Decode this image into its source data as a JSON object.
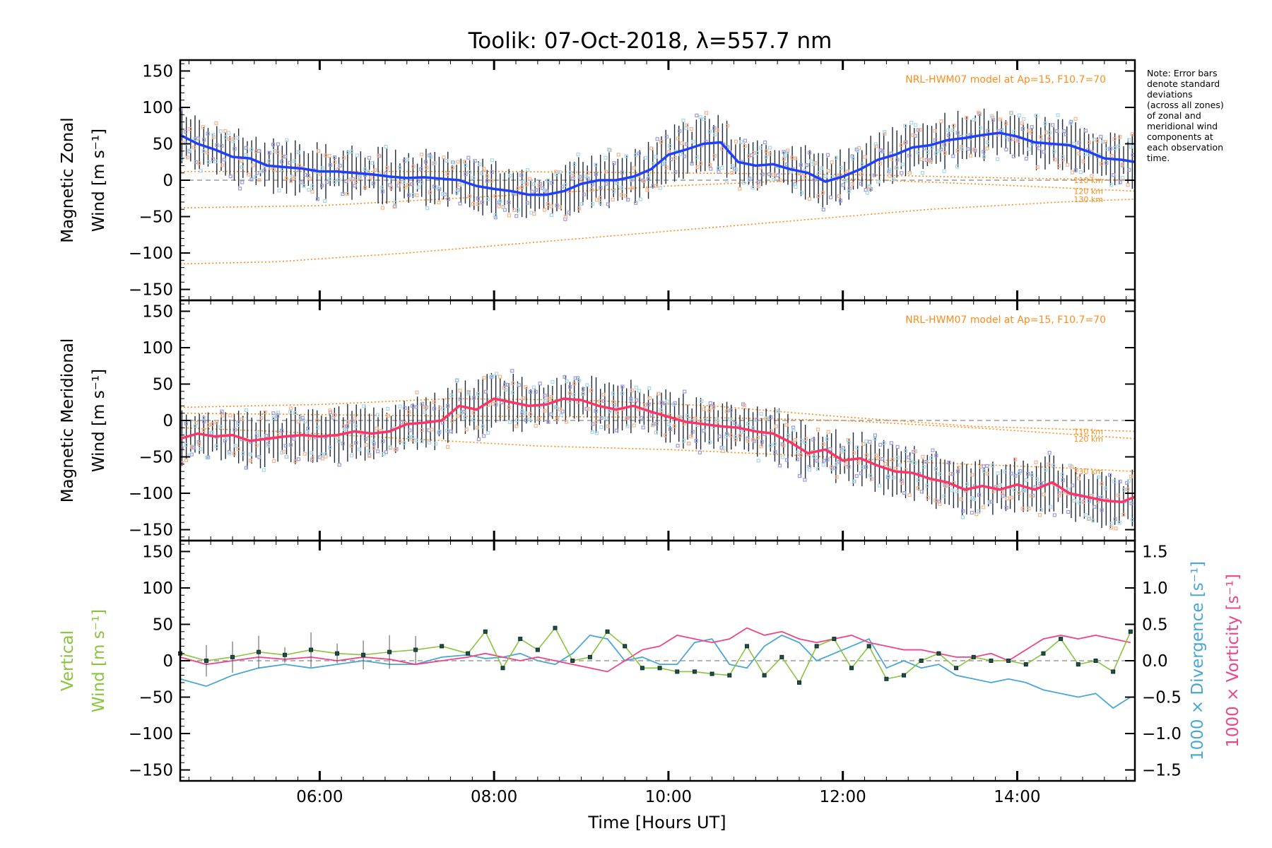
{
  "figure": {
    "title": "Toolik: 07-Oct-2018, λ=557.7 nm",
    "xlabel": "Time [Hours UT]",
    "note_lines": [
      "Note: Error bars",
      "denote standard",
      "deviations",
      "(across all zones)",
      "of zonal and",
      "meridional wind",
      "components at",
      "each observation",
      "time."
    ],
    "model_label": "NRL-HWM07 model at Ap=15, F10.7=70",
    "colors": {
      "zonal": "#1f3fff",
      "meridional": "#ff3366",
      "vertical": "#88c43c",
      "divergence": "#4aa6d6",
      "vorticity": "#ee4488",
      "model": "#ff8c1a",
      "scatter": "#9b9bdc",
      "errbar": "#202a3a"
    }
  },
  "chart_data": [
    {
      "type": "line",
      "panel": "zonal",
      "ylabel_line1": "Magnetic Zonal",
      "ylabel_line2": "Wind [m s⁻¹]",
      "ylim": [
        -165,
        165
      ],
      "xlim": [
        4.4,
        15.35
      ],
      "yticks": [
        -150,
        -100,
        -50,
        0,
        50,
        100,
        150
      ],
      "xticks": [
        {
          "v": 6,
          "label": "06:00"
        },
        {
          "v": 8,
          "label": "08:00"
        },
        {
          "v": 10,
          "label": "10:00"
        },
        {
          "v": 12,
          "label": "12:00"
        },
        {
          "v": 14,
          "label": "14:00"
        }
      ],
      "model_note": "NRL-HWM07 model at Ap=15, F10.7=70",
      "series": [
        {
          "name": "Zonal wind",
          "x": [
            4.4,
            4.6,
            4.8,
            5.0,
            5.2,
            5.4,
            5.6,
            5.8,
            6.0,
            6.2,
            6.4,
            6.6,
            6.8,
            7.0,
            7.2,
            7.4,
            7.6,
            7.8,
            8.0,
            8.2,
            8.4,
            8.6,
            8.8,
            9.0,
            9.2,
            9.4,
            9.6,
            9.8,
            10.0,
            10.2,
            10.4,
            10.6,
            10.8,
            11.0,
            11.2,
            11.4,
            11.6,
            11.8,
            12.0,
            12.2,
            12.4,
            12.6,
            12.8,
            13.0,
            13.2,
            13.4,
            13.6,
            13.8,
            14.0,
            14.2,
            14.4,
            14.6,
            14.8,
            15.0,
            15.2,
            15.35
          ],
          "values": [
            62,
            50,
            42,
            32,
            30,
            20,
            18,
            16,
            12,
            12,
            10,
            8,
            5,
            3,
            4,
            2,
            0,
            -8,
            -12,
            -15,
            -20,
            -20,
            -15,
            -5,
            0,
            0,
            5,
            15,
            35,
            42,
            50,
            52,
            25,
            20,
            22,
            15,
            10,
            -2,
            5,
            15,
            28,
            35,
            45,
            48,
            55,
            58,
            62,
            65,
            60,
            52,
            50,
            48,
            40,
            30,
            28,
            25
          ]
        },
        {
          "name": "110 km",
          "x": [
            4.4,
            6,
            8,
            10,
            12,
            13.5,
            15.35
          ],
          "values": [
            12,
            12,
            12,
            10,
            8,
            4,
            0
          ]
        },
        {
          "name": "120 km",
          "x": [
            4.4,
            6,
            8,
            10,
            12,
            13.5,
            15.35
          ],
          "values": [
            -38,
            -35,
            -22,
            -8,
            2,
            -5,
            -15
          ]
        },
        {
          "name": "130 km",
          "x": [
            4.4,
            5.5,
            7,
            8.5,
            10,
            11.5,
            13,
            14.5,
            15.35
          ],
          "values": [
            -115,
            -112,
            -100,
            -85,
            -70,
            -55,
            -40,
            -30,
            -26
          ]
        }
      ]
    },
    {
      "type": "line",
      "panel": "meridional",
      "ylabel_line1": "Magnetic Meridional",
      "ylabel_line2": "Wind [m s⁻¹]",
      "ylim": [
        -165,
        165
      ],
      "xlim": [
        4.4,
        15.35
      ],
      "yticks": [
        -150,
        -100,
        -50,
        0,
        50,
        100,
        150
      ],
      "model_note": "NRL-HWM07 model at Ap=15, F10.7=70",
      "series": [
        {
          "name": "Meridional wind",
          "x": [
            4.4,
            4.6,
            4.8,
            5.0,
            5.2,
            5.4,
            5.6,
            5.8,
            6.0,
            6.2,
            6.4,
            6.6,
            6.8,
            7.0,
            7.2,
            7.4,
            7.6,
            7.8,
            8.0,
            8.2,
            8.4,
            8.6,
            8.8,
            9.0,
            9.2,
            9.4,
            9.6,
            9.8,
            10.0,
            10.2,
            10.4,
            10.6,
            10.8,
            11.0,
            11.2,
            11.4,
            11.6,
            11.8,
            12.0,
            12.2,
            12.4,
            12.6,
            12.8,
            13.0,
            13.2,
            13.4,
            13.6,
            13.8,
            14.0,
            14.2,
            14.4,
            14.6,
            14.8,
            15.0,
            15.2,
            15.35
          ],
          "values": [
            -25,
            -18,
            -22,
            -20,
            -28,
            -25,
            -22,
            -20,
            -22,
            -20,
            -15,
            -18,
            -15,
            -5,
            -3,
            0,
            20,
            15,
            30,
            25,
            20,
            22,
            30,
            28,
            20,
            15,
            20,
            12,
            5,
            -2,
            -5,
            -8,
            -10,
            -15,
            -18,
            -30,
            -45,
            -40,
            -55,
            -52,
            -62,
            -70,
            -72,
            -80,
            -85,
            -95,
            -90,
            -95,
            -88,
            -95,
            -85,
            -100,
            -105,
            -110,
            -112,
            -105
          ]
        },
        {
          "name": "110 km",
          "x": [
            4.4,
            6,
            7.5,
            9,
            10.5,
            12,
            13.5,
            15.35
          ],
          "values": [
            18,
            22,
            30,
            28,
            20,
            5,
            -8,
            -15
          ]
        },
        {
          "name": "120 km",
          "x": [
            4.4,
            6,
            7.5,
            9,
            10.5,
            12,
            13.5,
            15.35
          ],
          "values": [
            10,
            8,
            6,
            5,
            4,
            0,
            -10,
            -25
          ]
        },
        {
          "name": "130 km",
          "x": [
            4.4,
            5.5,
            7,
            8.5,
            10,
            11.5,
            13,
            14.5,
            15.35
          ],
          "values": [
            -10,
            -15,
            -25,
            -35,
            -40,
            -48,
            -58,
            -65,
            -70
          ]
        }
      ]
    },
    {
      "type": "line",
      "panel": "vertical",
      "ylabel_line1": "Vertical",
      "ylabel_line2": "Wind [m s⁻¹]",
      "ylim": [
        -165,
        165
      ],
      "xlim": [
        4.4,
        15.35
      ],
      "yticks": [
        -150,
        -100,
        -50,
        0,
        50,
        100,
        150
      ],
      "y2label_div": "1000 × Divergence [s⁻¹]",
      "y2label_vor": "1000 × Vorticity [s⁻¹]",
      "y2lim": [
        -1.65,
        1.65
      ],
      "y2ticks": [
        {
          "v": 1.5,
          "label": "1.5"
        },
        {
          "v": 1.0,
          "label": "1.0"
        },
        {
          "v": 0.5,
          "label": "0.5"
        },
        {
          "v": 0.0,
          "label": "0.0"
        },
        {
          "v": -0.5,
          "label": "−0.5"
        },
        {
          "v": -1.0,
          "label": "−1.0"
        },
        {
          "v": -1.5,
          "label": "−1.5"
        }
      ],
      "series": [
        {
          "name": "Vertical wind",
          "x": [
            4.4,
            4.7,
            5.0,
            5.3,
            5.6,
            5.9,
            6.2,
            6.5,
            6.8,
            7.1,
            7.4,
            7.7,
            7.9,
            8.1,
            8.3,
            8.5,
            8.7,
            8.9,
            9.1,
            9.3,
            9.5,
            9.7,
            9.9,
            10.1,
            10.3,
            10.5,
            10.7,
            10.9,
            11.1,
            11.3,
            11.5,
            11.7,
            11.9,
            12.1,
            12.3,
            12.5,
            12.7,
            12.9,
            13.1,
            13.3,
            13.5,
            13.7,
            13.9,
            14.1,
            14.3,
            14.5,
            14.7,
            14.9,
            15.1,
            15.3
          ],
          "values": [
            10,
            0,
            5,
            12,
            8,
            15,
            10,
            8,
            12,
            15,
            20,
            10,
            40,
            -10,
            30,
            15,
            45,
            0,
            5,
            40,
            20,
            -10,
            -10,
            -15,
            -15,
            -18,
            -20,
            20,
            -20,
            5,
            -30,
            20,
            30,
            -10,
            20,
            -25,
            -20,
            0,
            10,
            -10,
            5,
            0,
            0,
            -5,
            10,
            30,
            -5,
            0,
            -15,
            40
          ]
        },
        {
          "name": "1000 × Divergence",
          "x": [
            4.4,
            4.7,
            5.0,
            5.3,
            5.6,
            5.9,
            6.2,
            6.5,
            6.8,
            7.1,
            7.4,
            7.7,
            7.9,
            8.1,
            8.3,
            8.5,
            8.7,
            8.9,
            9.1,
            9.3,
            9.5,
            9.7,
            9.9,
            10.1,
            10.3,
            10.5,
            10.7,
            10.9,
            11.1,
            11.3,
            11.5,
            11.7,
            11.9,
            12.1,
            12.3,
            12.5,
            12.7,
            12.9,
            13.1,
            13.3,
            13.5,
            13.7,
            13.9,
            14.1,
            14.3,
            14.5,
            14.7,
            14.9,
            15.1,
            15.3
          ],
          "values": [
            -0.25,
            -0.35,
            -0.2,
            -0.1,
            -0.05,
            -0.1,
            -0.05,
            0.0,
            -0.05,
            -0.05,
            0.05,
            0.08,
            0.03,
            0.05,
            0.1,
            0.0,
            -0.05,
            0.1,
            0.35,
            0.3,
            0.0,
            0.05,
            -0.05,
            -0.05,
            0.25,
            0.3,
            -0.05,
            -0.1,
            0.2,
            0.35,
            0.25,
            0.0,
            0.1,
            0.2,
            0.3,
            -0.1,
            0.0,
            -0.1,
            -0.05,
            -0.2,
            -0.25,
            -0.3,
            -0.25,
            -0.3,
            -0.4,
            -0.45,
            -0.5,
            -0.45,
            -0.65,
            -0.5
          ]
        },
        {
          "name": "1000 × Vorticity",
          "x": [
            4.4,
            4.7,
            5.0,
            5.3,
            5.6,
            5.9,
            6.2,
            6.5,
            6.8,
            7.1,
            7.4,
            7.7,
            7.9,
            8.1,
            8.3,
            8.5,
            8.7,
            8.9,
            9.1,
            9.3,
            9.5,
            9.7,
            9.9,
            10.1,
            10.3,
            10.5,
            10.7,
            10.9,
            11.1,
            11.3,
            11.5,
            11.7,
            11.9,
            12.1,
            12.3,
            12.5,
            12.7,
            12.9,
            13.1,
            13.3,
            13.5,
            13.7,
            13.9,
            14.1,
            14.3,
            14.5,
            14.7,
            14.9,
            15.1,
            15.3
          ],
          "values": [
            0.05,
            -0.05,
            0.0,
            0.05,
            0.02,
            0.05,
            0.0,
            0.05,
            0.02,
            -0.05,
            0.0,
            0.05,
            0.1,
            0.05,
            0.0,
            0.05,
            0.0,
            -0.05,
            -0.1,
            -0.15,
            0.0,
            0.15,
            0.2,
            0.35,
            0.3,
            0.25,
            0.3,
            0.45,
            0.35,
            0.4,
            0.3,
            0.25,
            0.3,
            0.35,
            0.25,
            0.2,
            0.15,
            0.15,
            0.1,
            0.05,
            0.05,
            0.1,
            0.0,
            0.15,
            0.3,
            0.35,
            0.3,
            0.35,
            0.3,
            0.25
          ]
        }
      ]
    }
  ]
}
